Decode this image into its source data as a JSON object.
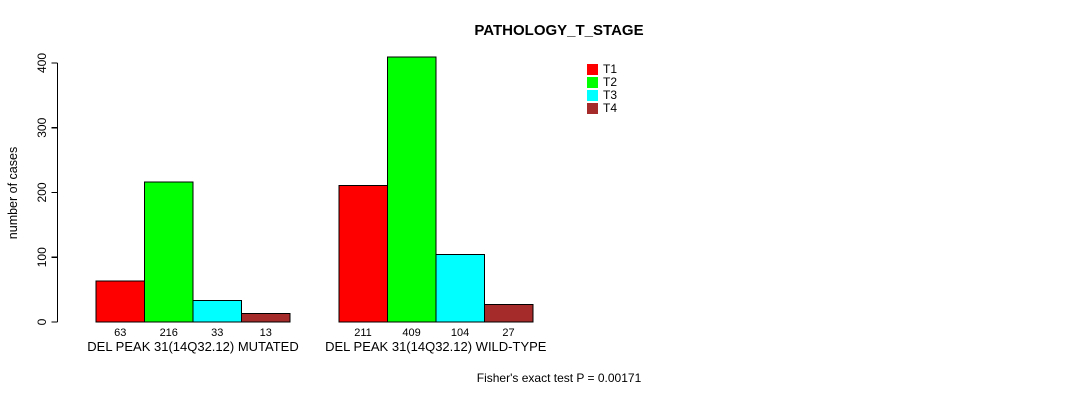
{
  "chart_data": {
    "type": "bar",
    "title": "PATHOLOGY_T_STAGE",
    "ylabel": "number of cases",
    "xlabel": "",
    "ylim": [
      0,
      400
    ],
    "yticks": [
      0,
      100,
      200,
      300,
      400
    ],
    "grid": false,
    "legend_position": "top-right",
    "bar_outline_color": "#000000",
    "categories": [
      "DEL PEAK 31(14Q32.12) MUTATED",
      "DEL PEAK 31(14Q32.12) WILD-TYPE"
    ],
    "series": [
      {
        "name": "T1",
        "color": "#ff0000",
        "values": [
          63,
          211
        ]
      },
      {
        "name": "T2",
        "color": "#00ff00",
        "values": [
          216,
          409
        ]
      },
      {
        "name": "T3",
        "color": "#00ffff",
        "values": [
          33,
          104
        ]
      },
      {
        "name": "T4",
        "color": "#a52a2a",
        "values": [
          13,
          27
        ]
      }
    ],
    "show_value_labels": true,
    "annotation": "Fisher's exact test P = 0.00171"
  }
}
